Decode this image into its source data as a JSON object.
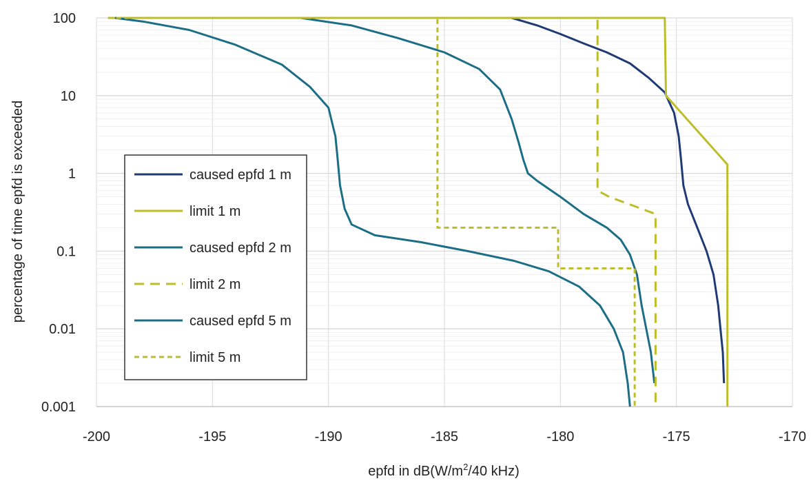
{
  "chart_data": {
    "type": "line",
    "xlabel_main": "epfd in dB(W/m",
    "xlabel_sup": "2",
    "xlabel_tail": "/40  kHz)",
    "ylabel": "percentage of time epfd is exceeded",
    "xlim": [
      -200,
      -170
    ],
    "ylim": [
      0.001,
      100
    ],
    "y_scale": "log",
    "grid": true,
    "legend_position": "left-middle",
    "x_ticks": [
      -200,
      -195,
      -190,
      -185,
      -180,
      -175,
      -170
    ],
    "y_ticks": [
      100,
      10,
      1,
      0.1,
      0.01,
      0.001
    ],
    "x_tick_labels": [
      "-200",
      "-195",
      "-190",
      "-185",
      "-180",
      "-175",
      "-170"
    ],
    "y_tick_labels": [
      "100",
      "10",
      "1",
      "0.1",
      "0.01",
      "0.001"
    ],
    "colors": {
      "navy": "#1f3a75",
      "teal": "#1c6e86",
      "olive": "#bdbd2a",
      "grid": "#d9d9d9"
    },
    "series": [
      {
        "name": "caused epfd 1 m",
        "color": "#1f3a75",
        "dash": "solid",
        "points": [
          [
            -182.1,
            100
          ],
          [
            -181,
            80
          ],
          [
            -180,
            62
          ],
          [
            -179,
            47
          ],
          [
            -178,
            36
          ],
          [
            -177,
            26
          ],
          [
            -176.2,
            17
          ],
          [
            -175.5,
            11
          ],
          [
            -175.1,
            6
          ],
          [
            -174.9,
            3
          ],
          [
            -174.8,
            1.5
          ],
          [
            -174.7,
            0.7
          ],
          [
            -174.5,
            0.4
          ],
          [
            -174.1,
            0.2
          ],
          [
            -173.7,
            0.1
          ],
          [
            -173.4,
            0.05
          ],
          [
            -173.2,
            0.02
          ],
          [
            -173.1,
            0.01
          ],
          [
            -173,
            0.005
          ],
          [
            -172.95,
            0.002
          ]
        ]
      },
      {
        "name": "limit 1 m",
        "color": "#bdbd2a",
        "dash": "solid",
        "points": [
          [
            -199.5,
            100
          ],
          [
            -175.5,
            100
          ],
          [
            -175.45,
            10
          ],
          [
            -172.8,
            1.3
          ],
          [
            -172.8,
            0.001
          ]
        ]
      },
      {
        "name": "caused epfd 2 m",
        "color": "#1c6e86",
        "dash": "solid",
        "points": [
          [
            -191.2,
            100
          ],
          [
            -189,
            80
          ],
          [
            -187,
            55
          ],
          [
            -185,
            36
          ],
          [
            -183.5,
            22
          ],
          [
            -182.6,
            12
          ],
          [
            -182.1,
            5
          ],
          [
            -181.8,
            2.5
          ],
          [
            -181.6,
            1.5
          ],
          [
            -181.4,
            1
          ],
          [
            -181,
            0.8
          ],
          [
            -180,
            0.5
          ],
          [
            -179,
            0.3
          ],
          [
            -178,
            0.2
          ],
          [
            -177.4,
            0.14
          ],
          [
            -177,
            0.09
          ],
          [
            -176.7,
            0.05
          ],
          [
            -176.5,
            0.02
          ],
          [
            -176.3,
            0.01
          ],
          [
            -176.1,
            0.005
          ],
          [
            -175.95,
            0.002
          ]
        ]
      },
      {
        "name": "limit 2 m",
        "color": "#bdbd2a",
        "dash": "longdash",
        "points": [
          [
            -199.5,
            100
          ],
          [
            -178.4,
            100
          ],
          [
            -178.4,
            0.6
          ],
          [
            -177.9,
            0.5
          ],
          [
            -176.5,
            0.35
          ],
          [
            -175.9,
            0.3
          ],
          [
            -175.9,
            0.001
          ]
        ]
      },
      {
        "name": "caused epfd 5 m",
        "color": "#1c6e86",
        "dash": "solid",
        "points": [
          [
            -199.2,
            100
          ],
          [
            -198,
            90
          ],
          [
            -196,
            70
          ],
          [
            -194,
            45
          ],
          [
            -192,
            25
          ],
          [
            -190.8,
            13
          ],
          [
            -190,
            7
          ],
          [
            -189.7,
            3
          ],
          [
            -189.6,
            1.5
          ],
          [
            -189.5,
            0.7
          ],
          [
            -189.3,
            0.35
          ],
          [
            -189,
            0.22
          ],
          [
            -188,
            0.16
          ],
          [
            -186,
            0.13
          ],
          [
            -184,
            0.1
          ],
          [
            -182,
            0.075
          ],
          [
            -180.5,
            0.055
          ],
          [
            -179.2,
            0.035
          ],
          [
            -178.3,
            0.02
          ],
          [
            -177.7,
            0.01
          ],
          [
            -177.3,
            0.005
          ],
          [
            -177.1,
            0.002
          ],
          [
            -177,
            0.001
          ]
        ]
      },
      {
        "name": "limit 5 m",
        "color": "#bdbd2a",
        "dash": "shortdash",
        "points": [
          [
            -199.5,
            100
          ],
          [
            -185.3,
            100
          ],
          [
            -185.3,
            0.2
          ],
          [
            -180.1,
            0.2
          ],
          [
            -180.1,
            0.06
          ],
          [
            -176.8,
            0.06
          ],
          [
            -176.8,
            0.001
          ]
        ]
      }
    ]
  }
}
